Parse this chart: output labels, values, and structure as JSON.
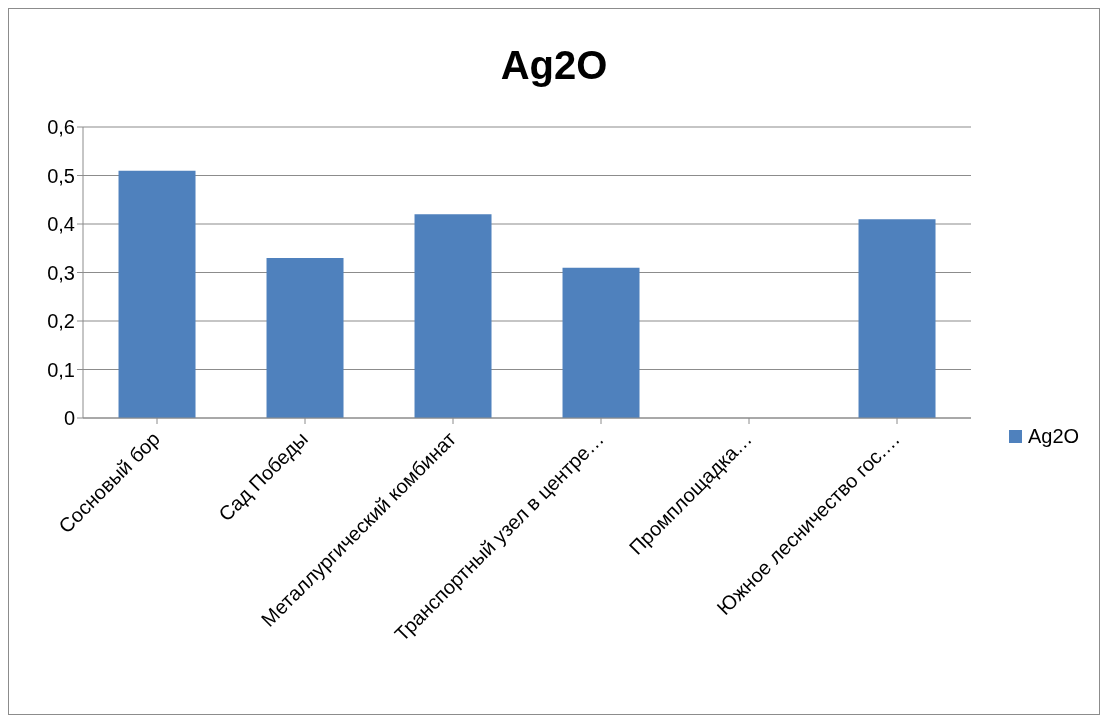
{
  "chart_data": {
    "type": "bar",
    "title": "Ag2O",
    "categories": [
      "Сосновый бор",
      "Сад Победы",
      "Металлургический комбинат",
      "Транспортный узел в центре…",
      "Промплощадка…",
      "Южное лесничество гос.…"
    ],
    "series": [
      {
        "name": "Ag2O",
        "color": "#4f81bd",
        "values": [
          0.51,
          0.33,
          0.42,
          0.31,
          null,
          0.41
        ]
      }
    ],
    "ylim": [
      0,
      0.6
    ],
    "yticks": [
      0,
      {
        "value": 0.1,
        "label": "0,1"
      },
      {
        "value": 0.2,
        "label": "0,2"
      },
      {
        "value": 0.3,
        "label": "0,3"
      },
      {
        "value": 0.4,
        "label": "0,4"
      },
      {
        "value": 0.5,
        "label": "0,5"
      },
      {
        "value": 0.6,
        "label": "0,6"
      }
    ],
    "grid": "y",
    "legend": "right"
  }
}
